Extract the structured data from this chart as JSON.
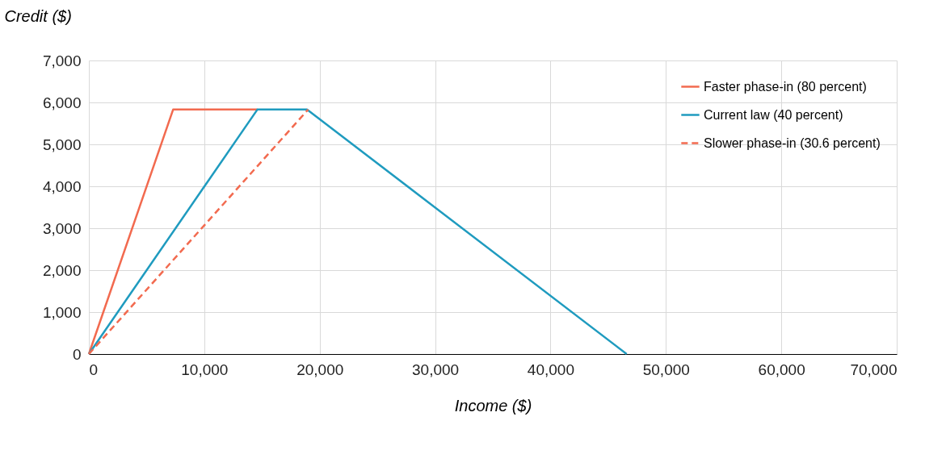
{
  "chart_data": {
    "type": "line",
    "xlabel": "Income ($)",
    "ylabel": "Credit ($)",
    "xlim": [
      0,
      70000
    ],
    "xticks": [
      0,
      {
        "value": 10000,
        "label": "10,000"
      },
      {
        "value": 20000,
        "label": "20,000"
      },
      {
        "value": 30000,
        "label": "30,000"
      },
      {
        "value": 40000,
        "label": "40,000"
      },
      {
        "value": 50000,
        "label": "50,000"
      },
      {
        "value": 60000,
        "label": "60,000"
      },
      {
        "value": 70000,
        "label": "70,000"
      }
    ],
    "ylim": [
      0,
      7000
    ],
    "yticks": [
      0,
      {
        "value": 1000,
        "label": "1,000"
      },
      {
        "value": 2000,
        "label": "2,000"
      },
      {
        "value": 3000,
        "label": "3,000"
      },
      {
        "value": 4000,
        "label": "4,000"
      },
      {
        "value": 5000,
        "label": "5,000"
      },
      {
        "value": 6000,
        "label": "6,000"
      },
      {
        "value": 7000,
        "label": "7,000"
      }
    ],
    "grid": true,
    "legend": "top right",
    "series": [
      {
        "name": "Faster phase-in (80 percent)",
        "color": "#f26a4f",
        "line_style": "solid",
        "x": [
          0,
          7300,
          14600
        ],
        "values": [
          0,
          5830,
          5830
        ]
      },
      {
        "name": "Current law (40 percent)",
        "color": "#1f9bbf",
        "line_style": "solid",
        "x": [
          0,
          14600,
          18900,
          46600
        ],
        "values": [
          0,
          5830,
          5830,
          0
        ]
      },
      {
        "name": "Slower phase-in (30.6 percent)",
        "color": "#f26a4f",
        "line_style": "dashed",
        "x": [
          0,
          19000
        ],
        "values": [
          0,
          5830
        ]
      }
    ]
  }
}
